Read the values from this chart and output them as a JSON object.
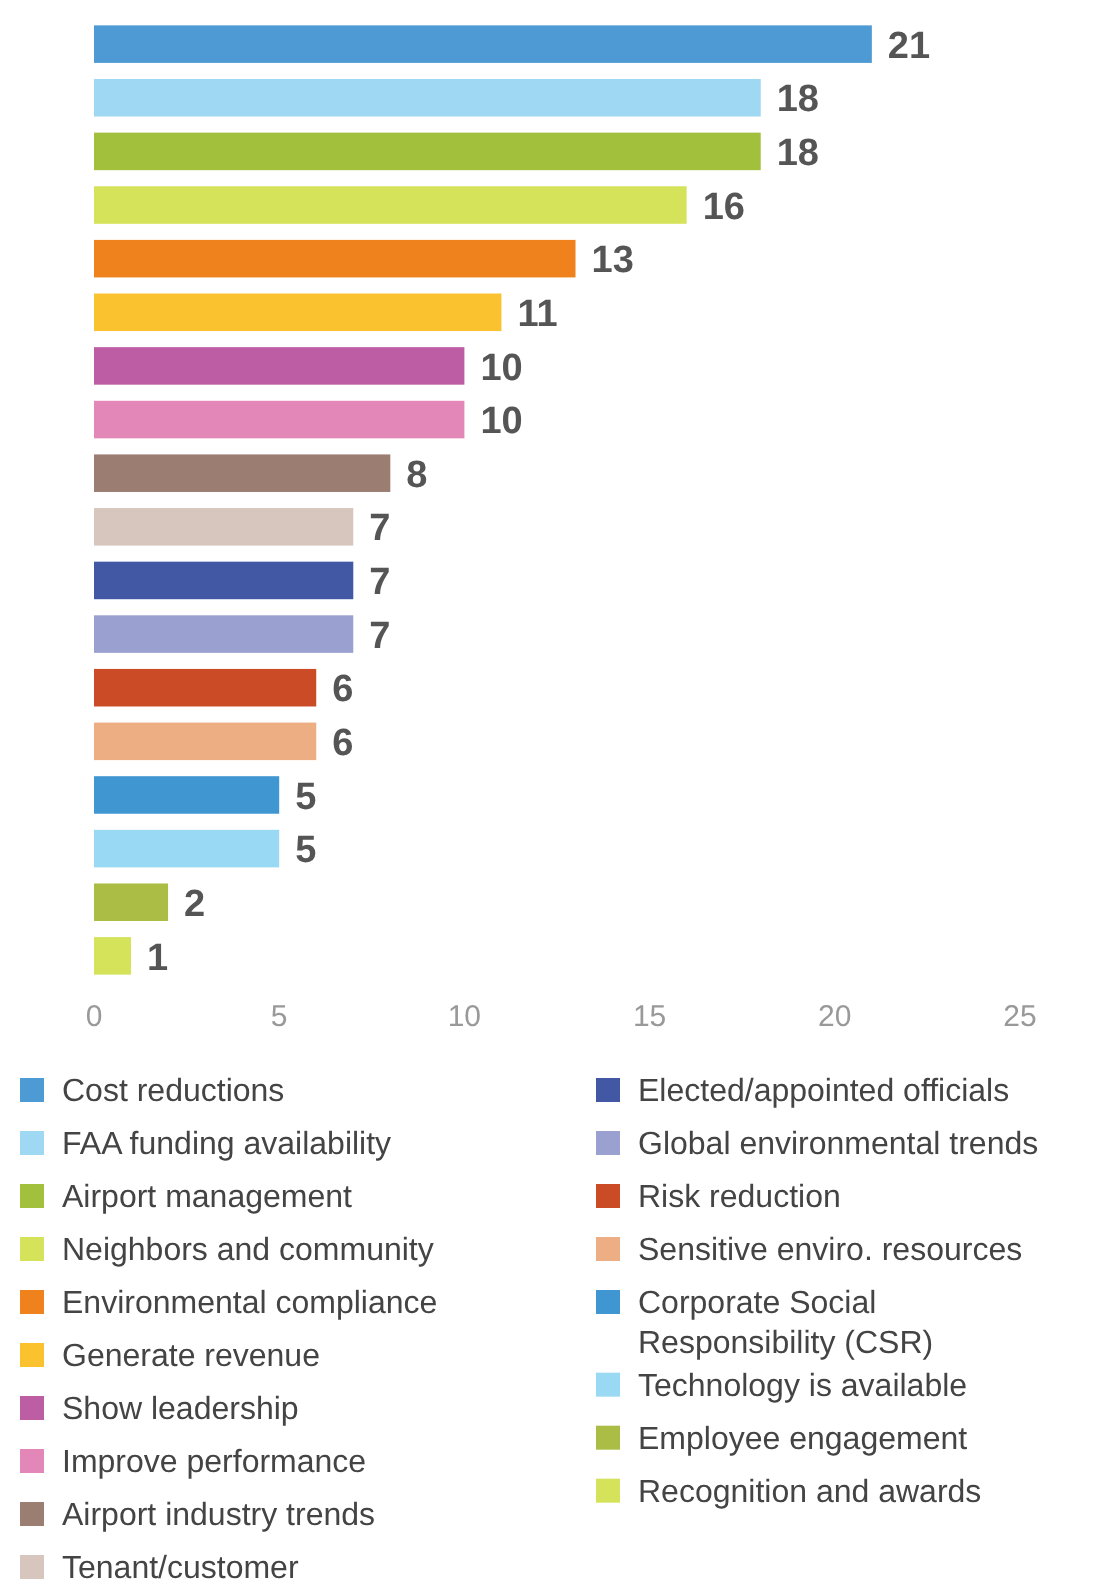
{
  "chart_data": {
    "type": "bar",
    "orientation": "horizontal",
    "categories": [
      null,
      null,
      null,
      null,
      null,
      null,
      null,
      null,
      null,
      null,
      null,
      null,
      null,
      null,
      null,
      null,
      null,
      null
    ],
    "series": [
      {
        "name": "Cost reductions",
        "color": "#4e9ad4",
        "values": [
          21,
          null,
          null,
          null,
          null,
          null,
          null,
          null,
          null,
          null,
          null,
          null,
          null,
          null,
          null,
          null,
          null,
          null
        ]
      },
      {
        "name": "FAA funding availability",
        "color": "#9fd8f2",
        "values": [
          null,
          18,
          null,
          null,
          null,
          null,
          null,
          null,
          null,
          null,
          null,
          null,
          null,
          null,
          null,
          null,
          null,
          null
        ]
      },
      {
        "name": "Airport management",
        "color": "#a3c03c",
        "values": [
          null,
          null,
          18,
          null,
          null,
          null,
          null,
          null,
          null,
          null,
          null,
          null,
          null,
          null,
          null,
          null,
          null,
          null
        ]
      },
      {
        "name": "Neighbors and community",
        "color": "#d4e35a",
        "values": [
          null,
          null,
          null,
          16,
          null,
          null,
          null,
          null,
          null,
          null,
          null,
          null,
          null,
          null,
          null,
          null,
          null,
          null
        ]
      },
      {
        "name": "Environmental compliance",
        "color": "#f0821e",
        "values": [
          null,
          null,
          null,
          null,
          13,
          null,
          null,
          null,
          null,
          null,
          null,
          null,
          null,
          null,
          null,
          null,
          null,
          null
        ]
      },
      {
        "name": "Generate revenue",
        "color": "#f9c22e",
        "values": [
          null,
          null,
          null,
          null,
          null,
          11,
          null,
          null,
          null,
          null,
          null,
          null,
          null,
          null,
          null,
          null,
          null,
          null
        ]
      },
      {
        "name": "Show leadership",
        "color": "#bd5ea5",
        "values": [
          null,
          null,
          null,
          null,
          null,
          null,
          10,
          null,
          null,
          null,
          null,
          null,
          null,
          null,
          null,
          null,
          null,
          null
        ]
      },
      {
        "name": "Improve performance",
        "color": "#e386b8",
        "values": [
          null,
          null,
          null,
          null,
          null,
          null,
          null,
          10,
          null,
          null,
          null,
          null,
          null,
          null,
          null,
          null,
          null,
          null
        ]
      },
      {
        "name": "Airport industry trends",
        "color": "#9c7d72",
        "values": [
          null,
          null,
          null,
          null,
          null,
          null,
          null,
          null,
          8,
          null,
          null,
          null,
          null,
          null,
          null,
          null,
          null,
          null
        ]
      },
      {
        "name": "Tenant/customer",
        "color": "#d6c6be",
        "values": [
          null,
          null,
          null,
          null,
          null,
          null,
          null,
          null,
          null,
          7,
          null,
          null,
          null,
          null,
          null,
          null,
          null,
          null
        ]
      },
      {
        "name": "Elected/appointed officials",
        "color": "#4258a4",
        "values": [
          null,
          null,
          null,
          null,
          null,
          null,
          null,
          null,
          null,
          null,
          7,
          null,
          null,
          null,
          null,
          null,
          null,
          null
        ]
      },
      {
        "name": "Global environmental trends",
        "color": "#9aa0cf",
        "values": [
          null,
          null,
          null,
          null,
          null,
          null,
          null,
          null,
          null,
          null,
          null,
          7,
          null,
          null,
          null,
          null,
          null,
          null
        ]
      },
      {
        "name": "Risk reduction",
        "color": "#cc4b27",
        "values": [
          null,
          null,
          null,
          null,
          null,
          null,
          null,
          null,
          null,
          null,
          null,
          null,
          6,
          null,
          null,
          null,
          null,
          null
        ]
      },
      {
        "name": "Sensitive enviro. resources",
        "color": "#eeae84",
        "values": [
          null,
          null,
          null,
          null,
          null,
          null,
          null,
          null,
          null,
          null,
          null,
          null,
          null,
          6,
          null,
          null,
          null,
          null
        ]
      },
      {
        "name": "Corporate Social Responsibility (CSR)",
        "color": "#3f96d1",
        "values": [
          null,
          null,
          null,
          null,
          null,
          null,
          null,
          null,
          null,
          null,
          null,
          null,
          null,
          null,
          5,
          null,
          null,
          null
        ]
      },
      {
        "name": "Technology is available",
        "color": "#9ad9f3",
        "values": [
          null,
          null,
          null,
          null,
          null,
          null,
          null,
          null,
          null,
          null,
          null,
          null,
          null,
          null,
          null,
          5,
          null,
          null
        ]
      },
      {
        "name": "Employee engagement",
        "color": "#abbd44",
        "values": [
          null,
          null,
          null,
          null,
          null,
          null,
          null,
          null,
          null,
          null,
          null,
          null,
          null,
          null,
          null,
          null,
          2,
          null
        ]
      },
      {
        "name": "Recognition and awards",
        "color": "#d4e35a",
        "values": [
          null,
          null,
          null,
          null,
          null,
          null,
          null,
          null,
          null,
          null,
          null,
          null,
          null,
          null,
          null,
          null,
          null,
          1
        ]
      }
    ],
    "stacked": true,
    "tick_labels": "x",
    "xlim": [
      0,
      25
    ],
    "xticks": [
      0,
      5,
      10,
      15,
      20,
      25
    ],
    "data_labels": true,
    "legend": "bottom"
  }
}
